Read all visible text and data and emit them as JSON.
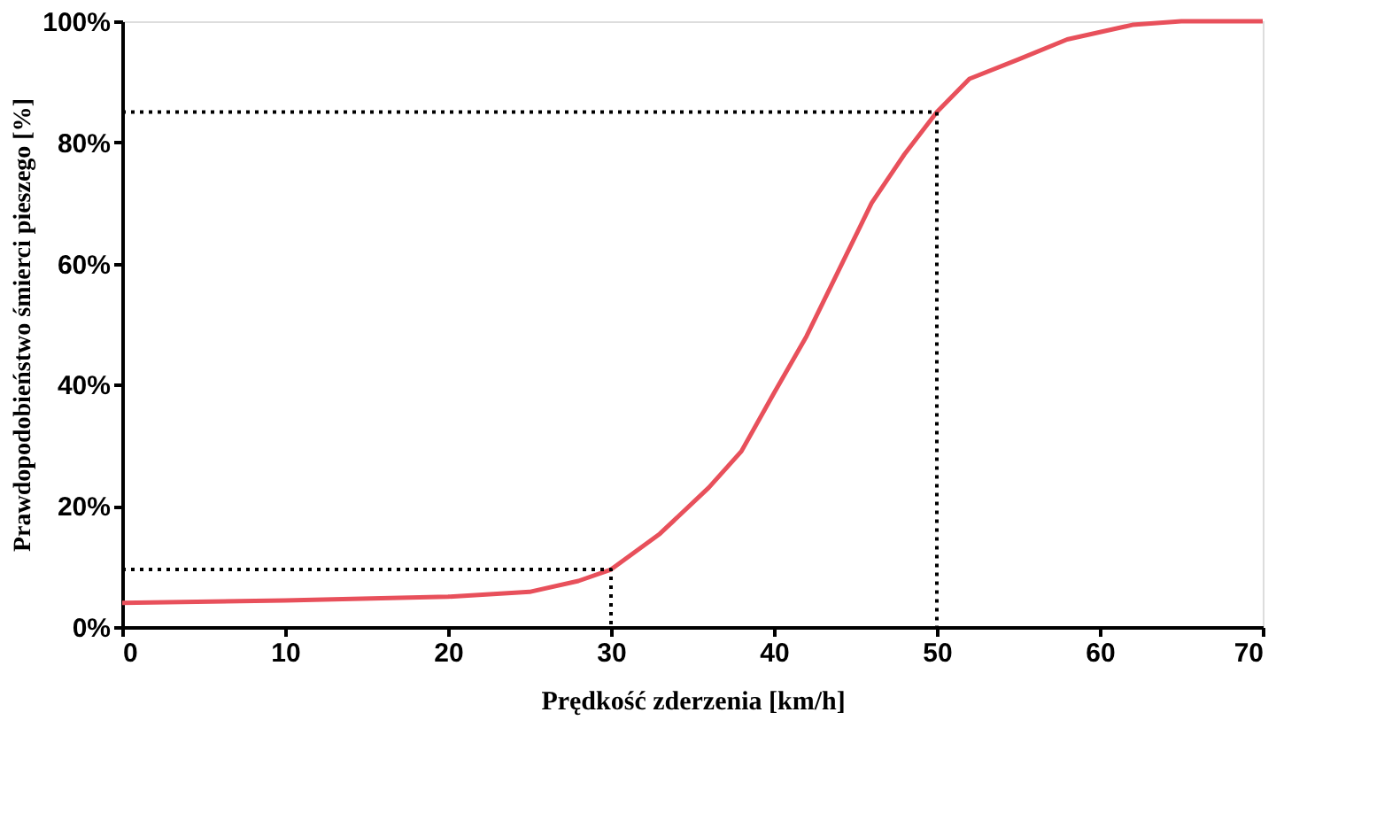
{
  "chart_data": {
    "type": "line",
    "xlabel": "Prędkość zderzenia [km/h]",
    "ylabel": "Prawdopodobieństwo śmierci pieszego [%]",
    "xlim": [
      0,
      70
    ],
    "xticks": [
      0,
      10,
      20,
      30,
      40,
      50,
      60,
      70
    ],
    "ylim": [
      0,
      100
    ],
    "yticks": [
      {
        "value": 0,
        "label": "0%"
      },
      {
        "value": 20,
        "label": "20%"
      },
      {
        "value": 40,
        "label": "40%"
      },
      {
        "value": 60,
        "label": "60%"
      },
      {
        "value": 80,
        "label": "80%"
      },
      {
        "value": 100,
        "label": "100%"
      }
    ],
    "grid": false,
    "marker": "none",
    "series": [
      {
        "color": "#e8505b",
        "line_style": "solid",
        "x": [
          0,
          10,
          20,
          25,
          28,
          30,
          33,
          36,
          38,
          40,
          42,
          44,
          46,
          48,
          50,
          52,
          55,
          58,
          62,
          65,
          70
        ],
        "values": [
          4,
          4.4,
          5,
          5.8,
          7.6,
          9.5,
          15.4,
          23,
          29,
          38.6,
          48,
          59,
          70,
          78,
          85,
          90.5,
          93.7,
          97,
          99.4,
          100,
          100
        ]
      },
      {
        "color": "#000000",
        "line_style": "dotted",
        "x": [
          0,
          30,
          30
        ],
        "values": [
          9.5,
          9.5,
          0
        ]
      },
      {
        "color": "#000000",
        "line_style": "dotted",
        "x": [
          0,
          50,
          50
        ],
        "values": [
          85,
          85,
          0
        ]
      }
    ]
  }
}
